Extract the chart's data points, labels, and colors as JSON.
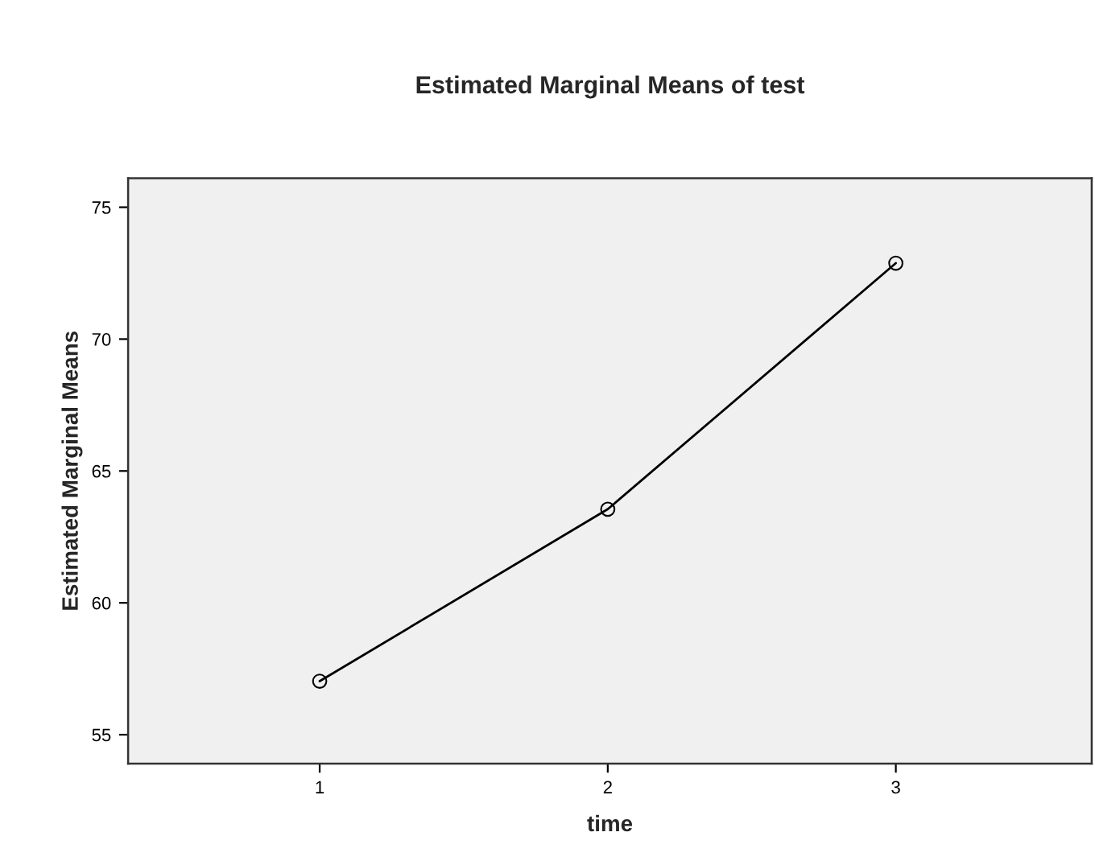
{
  "chart_data": {
    "type": "line",
    "title": "Estimated Marginal Means of test",
    "xlabel": "time",
    "ylabel": "Estimated Marginal Means",
    "categories": [
      "1",
      "2",
      "3"
    ],
    "series": [
      {
        "color": "#000000",
        "values": [
          57.03,
          63.55,
          72.88
        ]
      }
    ],
    "ylim": [
      53.9,
      76.1
    ],
    "yticks": [
      55,
      60,
      65,
      70,
      75
    ],
    "marker": "circle",
    "line_style": "solid",
    "grid": false,
    "legend": false
  }
}
